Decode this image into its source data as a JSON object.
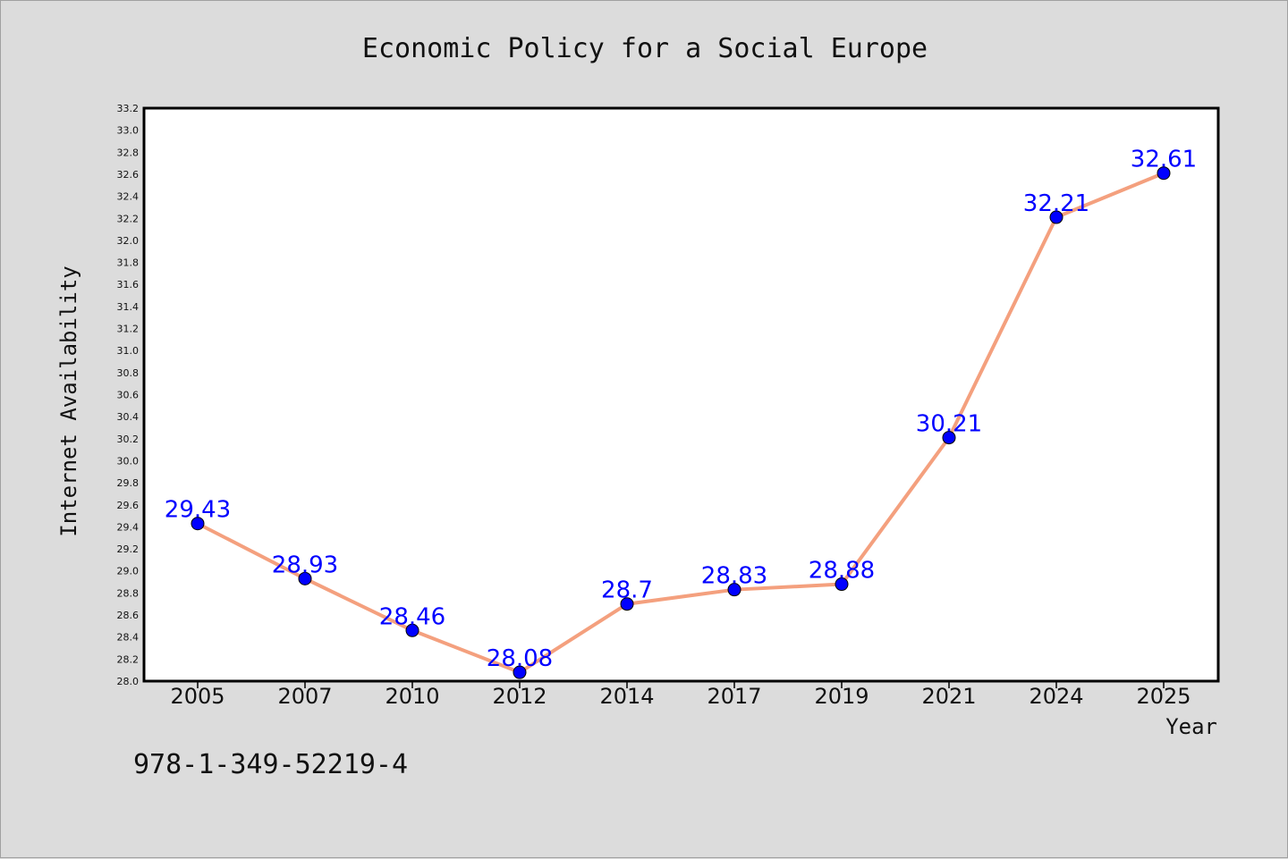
{
  "chart_data": {
    "type": "line",
    "title": "Economic Policy for a Social Europe",
    "xlabel": "Year",
    "ylabel": "Internet Availability",
    "categories": [
      "2005",
      "2007",
      "2010",
      "2012",
      "2014",
      "2017",
      "2019",
      "2021",
      "2024",
      "2025"
    ],
    "series": [
      {
        "values": [
          29.43,
          28.93,
          28.46,
          28.08,
          28.7,
          28.83,
          28.88,
          30.21,
          32.21,
          32.61
        ],
        "data_labels": [
          "29.43",
          "28.93",
          "28.46",
          "28.08",
          "28.7",
          "28.83",
          "28.88",
          "30.21",
          "32.21",
          "32.61"
        ]
      }
    ],
    "ylim": [
      28.0,
      33.2
    ],
    "yticks": [
      "28.0",
      "28.2",
      "28.4",
      "28.6",
      "28.8",
      "29.0",
      "29.2",
      "29.4",
      "29.6",
      "29.8",
      "30.0",
      "30.2",
      "30.4",
      "30.6",
      "30.8",
      "31.0",
      "31.2",
      "31.4",
      "31.6",
      "31.8",
      "32.0",
      "32.2",
      "32.4",
      "32.6",
      "32.8",
      "33.0",
      "33.2"
    ],
    "grid": false,
    "line_color": "#f4a07e",
    "marker_color": "#0000ff",
    "label_color": "#0000ff"
  },
  "footer_text": "978-1-349-52219-4"
}
